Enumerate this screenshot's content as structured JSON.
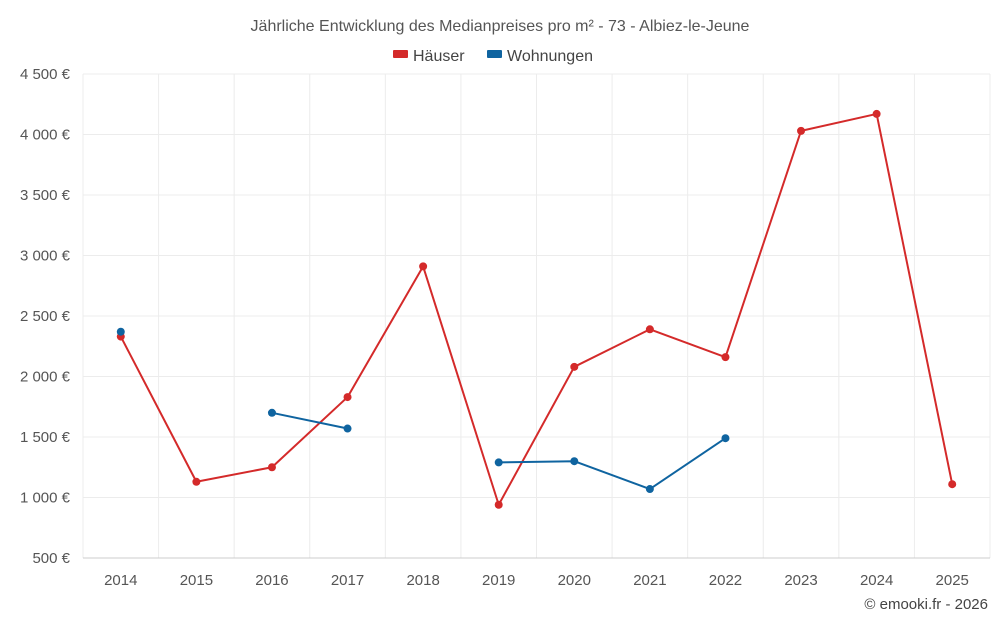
{
  "chart_data": {
    "type": "line",
    "title": "Jährliche Entwicklung des Medianpreises pro m² - 73 - Albiez-le-Jeune",
    "categories": [
      "2014",
      "2015",
      "2016",
      "2017",
      "2018",
      "2019",
      "2020",
      "2021",
      "2022",
      "2023",
      "2024",
      "2025"
    ],
    "ylim": [
      500,
      4500
    ],
    "yticks": [
      500,
      1000,
      1500,
      2000,
      2500,
      3000,
      3500,
      4000,
      4500
    ],
    "ytick_labels": [
      "500 €",
      "1 000 €",
      "1 500 €",
      "2 000 €",
      "2 500 €",
      "3 000 €",
      "3 500 €",
      "4 000 €",
      "4 500 €"
    ],
    "grid": true,
    "legend_position": "top-center",
    "series": [
      {
        "name": "Häuser",
        "color": "#d42a2a",
        "values": [
          2330,
          1130,
          1250,
          1830,
          2910,
          940,
          2080,
          2390,
          2160,
          4030,
          4170,
          1110
        ]
      },
      {
        "name": "Wohnungen",
        "color": "#0f64a0",
        "values": [
          2370,
          null,
          1700,
          1570,
          null,
          1290,
          1300,
          1070,
          1490,
          null,
          null,
          null
        ]
      }
    ]
  },
  "credit": "© emooki.fr - 2026"
}
